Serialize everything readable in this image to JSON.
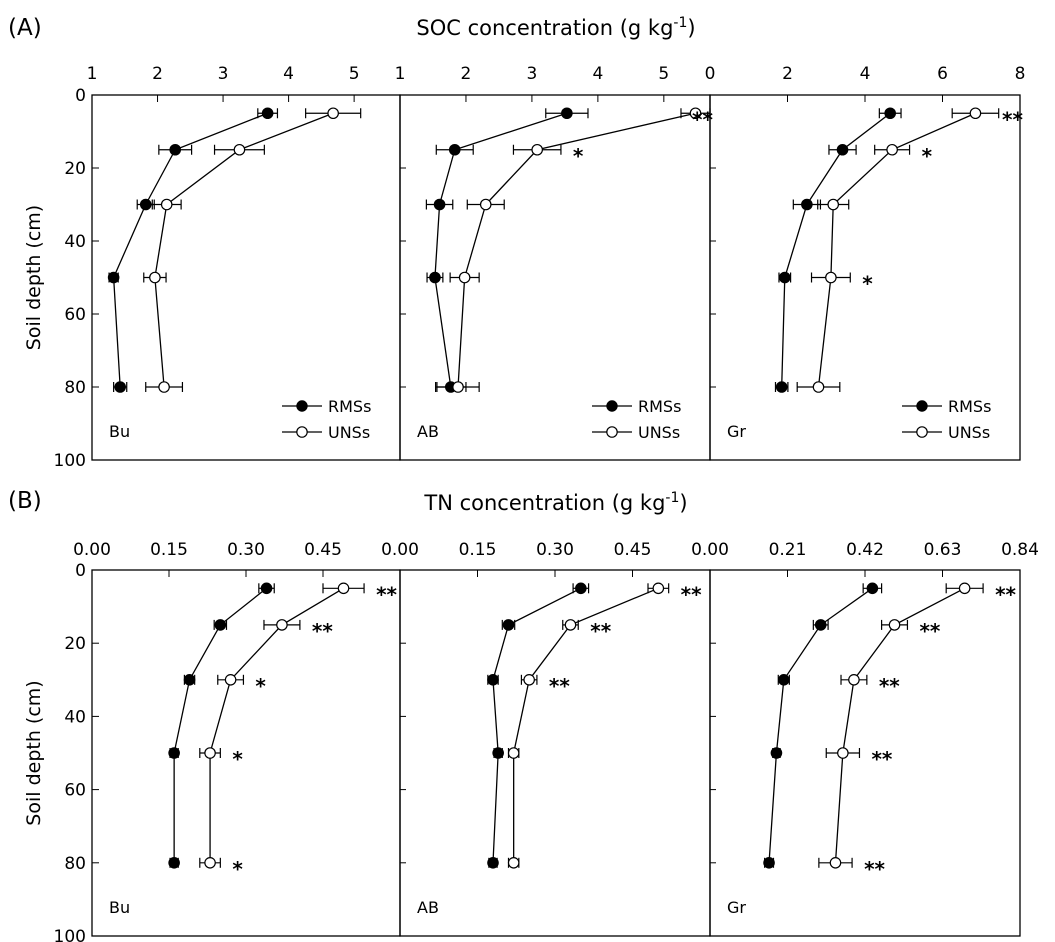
{
  "chart_data": [
    {
      "type": "line",
      "panel_label": "(A)",
      "xlabel": "SOC concentration (g kg",
      "xlabel_sup": "-1",
      "xlabel_suffix": ")",
      "ylabel": "Soil depth (cm)",
      "ylim": [
        0,
        100
      ],
      "y_ticks": [
        "0",
        "20",
        "40",
        "60",
        "80",
        "100"
      ],
      "legend_placement": "bottom-right",
      "subplots": [
        {
          "site": "Bu",
          "xlim": [
            1,
            5.7
          ],
          "x_ticks": [
            1,
            2,
            3,
            4,
            5
          ],
          "x_tick_labels": [
            "1",
            "2",
            "3",
            "4",
            "5"
          ],
          "depths": [
            5,
            15,
            30,
            50,
            80
          ],
          "series": [
            {
              "name": "RMSs",
              "values": [
                3.68,
                2.27,
                1.82,
                1.33,
                1.43
              ],
              "errors": [
                0.15,
                0.25,
                0.13,
                0.07,
                0.1
              ]
            },
            {
              "name": "UNSs",
              "values": [
                4.68,
                3.25,
                2.14,
                1.96,
                2.1
              ],
              "errors": [
                0.42,
                0.38,
                0.22,
                0.17,
                0.28
              ]
            }
          ],
          "significance": [
            "",
            "",
            "",
            "",
            ""
          ]
        },
        {
          "site": "AB",
          "xlim": [
            1,
            5.7
          ],
          "x_ticks": [
            1,
            2,
            3,
            4,
            5
          ],
          "x_tick_labels": [
            "1",
            "2",
            "3",
            "4",
            "5"
          ],
          "depths": [
            5,
            15,
            30,
            50,
            80
          ],
          "series": [
            {
              "name": "RMSs",
              "values": [
                3.53,
                1.83,
                1.6,
                1.53,
                1.77
              ],
              "errors": [
                0.32,
                0.28,
                0.2,
                0.12,
                0.23
              ]
            },
            {
              "name": "UNSs",
              "values": [
                5.48,
                3.08,
                2.3,
                1.98,
                1.88
              ],
              "errors": [
                0.22,
                0.36,
                0.28,
                0.22,
                0.32
              ]
            }
          ],
          "significance": [
            "**",
            "*",
            "",
            "",
            ""
          ]
        },
        {
          "site": "Gr",
          "xlim": [
            0,
            8
          ],
          "x_ticks": [
            0,
            2,
            4,
            6,
            8
          ],
          "x_tick_labels": [
            "0",
            "2",
            "4",
            "6",
            "8"
          ],
          "depths": [
            5,
            15,
            30,
            50,
            80
          ],
          "series": [
            {
              "name": "RMSs",
              "values": [
                4.65,
                3.42,
                2.5,
                1.93,
                1.85
              ],
              "errors": [
                0.28,
                0.35,
                0.35,
                0.15,
                0.16
              ]
            },
            {
              "name": "UNSs",
              "values": [
                6.85,
                4.7,
                3.18,
                3.12,
                2.8
              ],
              "errors": [
                0.6,
                0.45,
                0.4,
                0.5,
                0.55
              ]
            }
          ],
          "significance": [
            "**",
            "*",
            "",
            "*",
            ""
          ]
        }
      ]
    },
    {
      "type": "line",
      "panel_label": "(B)",
      "xlabel": "TN concentration (g kg",
      "xlabel_sup": "-1",
      "xlabel_suffix": ")",
      "ylabel": "Soil depth (cm)",
      "ylim": [
        0,
        100
      ],
      "y_ticks": [
        "0",
        "20",
        "40",
        "60",
        "80",
        "100"
      ],
      "subplots": [
        {
          "site": "Bu",
          "xlim": [
            0,
            0.6
          ],
          "x_ticks": [
            0,
            0.15,
            0.3,
            0.45
          ],
          "x_tick_labels": [
            "0.00",
            "0.15",
            "0.30",
            "0.45"
          ],
          "depths": [
            5,
            15,
            30,
            50,
            80
          ],
          "series": [
            {
              "name": "RMSs",
              "values": [
                0.34,
                0.25,
                0.19,
                0.16,
                0.16
              ],
              "errors": [
                0.015,
                0.012,
                0.01,
                0.008,
                0.008
              ]
            },
            {
              "name": "UNSs",
              "values": [
                0.49,
                0.37,
                0.27,
                0.23,
                0.23
              ],
              "errors": [
                0.04,
                0.035,
                0.025,
                0.02,
                0.02
              ]
            }
          ],
          "significance": [
            "**",
            "**",
            "*",
            "*",
            "*"
          ]
        },
        {
          "site": "AB",
          "xlim": [
            0,
            0.6
          ],
          "x_ticks": [
            0,
            0.15,
            0.3,
            0.45
          ],
          "x_tick_labels": [
            "0.00",
            "0.15",
            "0.30",
            "0.45"
          ],
          "depths": [
            5,
            15,
            30,
            50,
            80
          ],
          "series": [
            {
              "name": "RMSs",
              "values": [
                0.35,
                0.21,
                0.18,
                0.19,
                0.18
              ],
              "errors": [
                0.015,
                0.012,
                0.01,
                0.008,
                0.008
              ]
            },
            {
              "name": "UNSs",
              "values": [
                0.5,
                0.33,
                0.25,
                0.22,
                0.22
              ],
              "errors": [
                0.02,
                0.015,
                0.015,
                0.01,
                0.01
              ]
            }
          ],
          "significance": [
            "**",
            "**",
            "**",
            "",
            ""
          ]
        },
        {
          "site": "Gr",
          "xlim": [
            0,
            0.84
          ],
          "x_ticks": [
            0,
            0.21,
            0.42,
            0.63,
            0.84
          ],
          "x_tick_labels": [
            "0.00",
            "0.21",
            "0.42",
            "0.63",
            "0.84"
          ],
          "depths": [
            5,
            15,
            30,
            50,
            80
          ],
          "series": [
            {
              "name": "RMSs",
              "values": [
                0.44,
                0.3,
                0.2,
                0.18,
                0.16
              ],
              "errors": [
                0.025,
                0.02,
                0.015,
                0.01,
                0.012
              ]
            },
            {
              "name": "UNSs",
              "values": [
                0.69,
                0.5,
                0.39,
                0.36,
                0.34
              ],
              "errors": [
                0.05,
                0.035,
                0.035,
                0.045,
                0.045
              ]
            }
          ],
          "significance": [
            "**",
            "**",
            "**",
            "**",
            "**"
          ]
        }
      ]
    }
  ]
}
